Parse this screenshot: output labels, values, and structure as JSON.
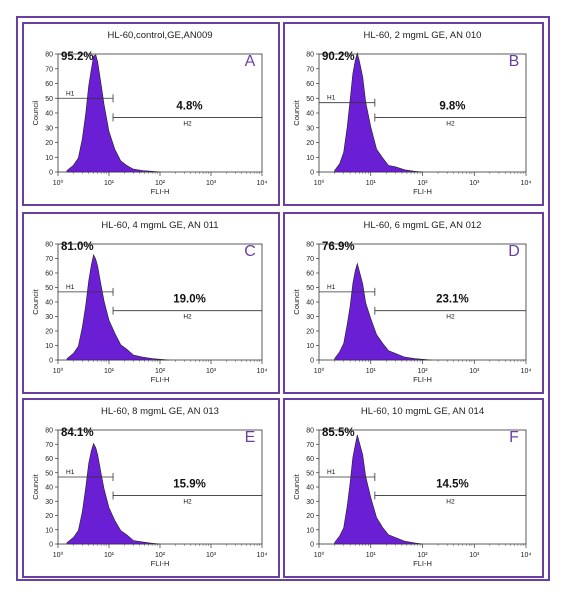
{
  "chart_data": [
    {
      "type": "area",
      "panel": "A",
      "title": "HL-60,control,GE,AN009",
      "letter": "A",
      "xlabel": "FLI-H",
      "ylabel": "Council",
      "xscale": "log",
      "xlim": [
        1,
        10000
      ],
      "ylim": [
        0,
        80
      ],
      "xticks": [
        "10⁰",
        "10¹",
        "10²",
        "10³",
        "10⁴"
      ],
      "yticks": [
        "0",
        "10",
        "20",
        "30",
        "40",
        "50",
        "60",
        "70",
        "80"
      ],
      "gates": [
        {
          "name": "H1",
          "percent": "95.2%",
          "level": 50
        },
        {
          "name": "H2",
          "percent": "4.8%",
          "level": 37
        }
      ],
      "fill_color": "#6b1fd4",
      "x": [
        1.5,
        2,
        2.5,
        3,
        3.5,
        4,
        4.5,
        5,
        5.5,
        6,
        7,
        8,
        10,
        13,
        17,
        22,
        30,
        45,
        70,
        100
      ],
      "y": [
        1,
        4,
        10,
        22,
        40,
        58,
        70,
        78,
        80,
        74,
        60,
        45,
        28,
        15,
        8,
        4,
        2,
        1,
        0.5,
        0
      ]
    },
    {
      "type": "area",
      "panel": "B",
      "title": "HL-60, 2 mgmL GE, AN 010",
      "letter": "B",
      "xlabel": "FLI-H",
      "ylabel": "Councit",
      "xscale": "log",
      "xlim": [
        1,
        10000
      ],
      "ylim": [
        0,
        80
      ],
      "xticks": [
        "10⁰",
        "10¹",
        "10²",
        "10³",
        "10⁴"
      ],
      "yticks": [
        "0",
        "10",
        "20",
        "30",
        "40",
        "50",
        "60",
        "70",
        "80"
      ],
      "gates": [
        {
          "name": "H1",
          "percent": "90.2%",
          "level": 47
        },
        {
          "name": "H2",
          "percent": "9.8%",
          "level": 37
        }
      ],
      "fill_color": "#6b1fd4",
      "x": [
        2,
        2.5,
        3,
        3.5,
        4,
        4.5,
        5,
        5.5,
        6,
        7,
        8,
        10,
        13,
        17,
        22,
        30,
        45,
        70,
        100
      ],
      "y": [
        1,
        5,
        14,
        30,
        50,
        66,
        76,
        80,
        76,
        64,
        48,
        30,
        16,
        9,
        5,
        3,
        1.5,
        0.5,
        0
      ]
    },
    {
      "type": "area",
      "panel": "C",
      "title": "HL-60, 4 mgmL GE, AN 011",
      "letter": "C",
      "xlabel": "FLI-H",
      "ylabel": "Councit",
      "xscale": "log",
      "xlim": [
        1,
        10000
      ],
      "ylim": [
        0,
        80
      ],
      "xticks": [
        "10⁰",
        "10¹",
        "10²",
        "10³",
        "10⁴"
      ],
      "yticks": [
        "0",
        "10",
        "20",
        "30",
        "40",
        "50",
        "60",
        "70",
        "80"
      ],
      "gates": [
        {
          "name": "H1",
          "percent": "81.0%",
          "level": 47
        },
        {
          "name": "H2",
          "percent": "19.0%",
          "level": 34
        }
      ],
      "fill_color": "#6b1fd4",
      "x": [
        1.5,
        2,
        2.5,
        3,
        3.5,
        4,
        4.5,
        5,
        5.5,
        6,
        7,
        8,
        10,
        13,
        17,
        22,
        30,
        45,
        70,
        100,
        150
      ],
      "y": [
        1,
        4,
        10,
        22,
        38,
        54,
        66,
        72,
        70,
        64,
        52,
        40,
        28,
        18,
        11,
        7,
        4,
        2,
        1,
        0.5,
        0
      ]
    },
    {
      "type": "area",
      "panel": "D",
      "title": "HL-60, 6 mgmL GE, AN 012",
      "letter": "D",
      "xlabel": "FLI-H",
      "ylabel": "Councit",
      "xscale": "log",
      "xlim": [
        1,
        10000
      ],
      "ylim": [
        0,
        80
      ],
      "xticks": [
        "10⁰",
        "10¹",
        "10²",
        "10³",
        "10⁴"
      ],
      "yticks": [
        "0",
        "10",
        "20",
        "30",
        "40",
        "50",
        "60",
        "70",
        "80"
      ],
      "gates": [
        {
          "name": "H1",
          "percent": "76.9%",
          "level": 47
        },
        {
          "name": "H2",
          "percent": "23.1%",
          "level": 34
        }
      ],
      "fill_color": "#6b1fd4",
      "x": [
        2,
        2.5,
        3,
        3.5,
        4,
        4.5,
        5,
        5.5,
        6,
        7,
        8,
        10,
        13,
        17,
        22,
        30,
        45,
        70,
        100,
        150
      ],
      "y": [
        1,
        5,
        12,
        24,
        38,
        52,
        62,
        66,
        62,
        52,
        40,
        28,
        18,
        11,
        7,
        4,
        2,
        1,
        0.5,
        0
      ]
    },
    {
      "type": "area",
      "panel": "E",
      "title": "HL-60, 8 mgmL GE, AN 013",
      "letter": "E",
      "xlabel": "FLI-H",
      "ylabel": "Councit",
      "xscale": "log",
      "xlim": [
        1,
        10000
      ],
      "ylim": [
        0,
        80
      ],
      "xticks": [
        "10⁰",
        "10¹",
        "10²",
        "10³",
        "10⁴"
      ],
      "yticks": [
        "0",
        "10",
        "20",
        "30",
        "40",
        "50",
        "60",
        "70",
        "80"
      ],
      "gates": [
        {
          "name": "H1",
          "percent": "84.1%",
          "level": 47
        },
        {
          "name": "H2",
          "percent": "15.9%",
          "level": 34
        }
      ],
      "fill_color": "#6b1fd4",
      "x": [
        1.5,
        2,
        2.5,
        3,
        3.5,
        4,
        4.5,
        5,
        5.5,
        6,
        7,
        8,
        10,
        13,
        17,
        22,
        30,
        45,
        70,
        100
      ],
      "y": [
        1,
        4,
        10,
        22,
        40,
        56,
        66,
        70,
        68,
        62,
        50,
        38,
        26,
        16,
        10,
        6,
        3,
        1.5,
        0.5,
        0
      ]
    },
    {
      "type": "area",
      "panel": "F",
      "title": "HL-60, 10 mgmL GE, AN 014",
      "letter": "F",
      "xlabel": "FLI-H",
      "ylabel": "Councit",
      "xscale": "log",
      "xlim": [
        1,
        10000
      ],
      "ylim": [
        0,
        80
      ],
      "xticks": [
        "10⁰",
        "10¹",
        "10²",
        "10³",
        "10⁴"
      ],
      "yticks": [
        "0",
        "10",
        "20",
        "30",
        "40",
        "50",
        "60",
        "70",
        "80"
      ],
      "gates": [
        {
          "name": "H1",
          "percent": "85.5%",
          "level": 47
        },
        {
          "name": "H2",
          "percent": "14.5%",
          "level": 34
        }
      ],
      "fill_color": "#6b1fd4",
      "x": [
        2,
        2.5,
        3,
        3.5,
        4,
        4.5,
        5,
        5.5,
        6,
        7,
        8,
        10,
        13,
        17,
        22,
        30,
        45,
        70,
        100
      ],
      "y": [
        1,
        5,
        12,
        26,
        44,
        60,
        70,
        76,
        72,
        62,
        48,
        32,
        19,
        11,
        7,
        4,
        2,
        0.8,
        0
      ]
    }
  ]
}
